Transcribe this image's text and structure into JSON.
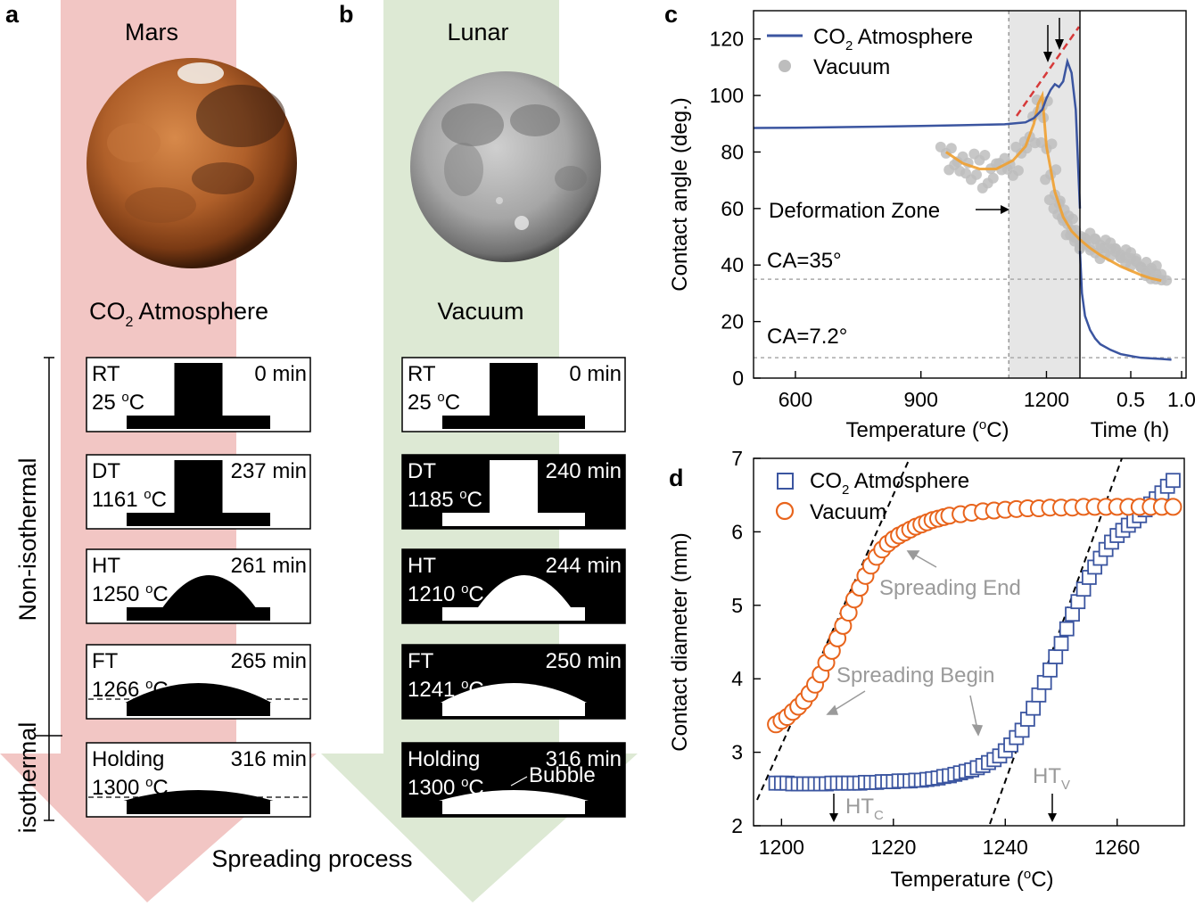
{
  "panels": {
    "a": {
      "letter": "a",
      "planet": "Mars",
      "atmosphere_main": "CO",
      "atmosphere_sub": "2",
      "atmosphere_rest": " Atmosphere",
      "arrow_color": "#f2c6c4",
      "frames": [
        {
          "state": "RT",
          "temp": "25",
          "temp_unit": "oC",
          "time": "0 min"
        },
        {
          "state": "DT",
          "temp": "1161",
          "temp_unit": "oC",
          "time": "237 min"
        },
        {
          "state": "HT",
          "temp": "1250",
          "temp_unit": "oC",
          "time": "261 min"
        },
        {
          "state": "FT",
          "temp": "1266",
          "temp_unit": "oC",
          "time": "265 min"
        },
        {
          "state": "Holding",
          "temp": "1300",
          "temp_unit": "oC",
          "time": "316 min"
        }
      ]
    },
    "b": {
      "letter": "b",
      "planet": "Lunar",
      "atmosphere": "Vacuum",
      "arrow_color": "#dde9d4",
      "bubble": "Bubble",
      "frames": [
        {
          "state": "RT",
          "temp": "25",
          "temp_unit": "oC",
          "time": "0 min"
        },
        {
          "state": "DT",
          "temp": "1185",
          "temp_unit": "oC",
          "time": "240 min"
        },
        {
          "state": "HT",
          "temp": "1210",
          "temp_unit": "oC",
          "time": "244 min"
        },
        {
          "state": "FT",
          "temp": "1241",
          "temp_unit": "oC",
          "time": "250 min"
        },
        {
          "state": "Holding",
          "temp": "1300",
          "temp_unit": "oC",
          "time": "316 min"
        }
      ]
    },
    "side_labels": {
      "non_isothermal": "Non-isothermal",
      "isothermal": "isothermal"
    },
    "bottom_label": "Spreading process"
  },
  "chart_data": [
    {
      "panel": "c",
      "type": "line",
      "ylabel": "Contact angle (deg.)",
      "ylim": [
        0,
        130
      ],
      "yticks": [
        0,
        20,
        40,
        60,
        80,
        100,
        120
      ],
      "x_temperature": {
        "label": "Temperature (",
        "label_sup": "o",
        "label_end": "C)",
        "range": [
          500,
          1280
        ],
        "ticks": [
          600,
          900,
          1200
        ]
      },
      "x_time": {
        "label": "Time (h)",
        "range": [
          0,
          1.0
        ],
        "ticks": [
          "0.5",
          "1.0"
        ],
        "tick_values": [
          0.5,
          1.0
        ]
      },
      "legend": [
        {
          "name_main": "CO",
          "name_sub": "2",
          "name_rest": " Atmosphere",
          "color": "#3b55a0"
        },
        {
          "name": "Vacuum",
          "color": "#bdbdbd"
        }
      ],
      "annotations": {
        "zone": "Deformation Zone",
        "ca1": "CA=35°",
        "ca2": "CA=7.2°"
      },
      "zone_range": [
        1110,
        1280
      ],
      "reference_lines": [
        35,
        7.2
      ],
      "series": [
        {
          "name": "CO2 Atmosphere",
          "segment": "temperature",
          "color": "#3b55a0",
          "x": [
            500,
            600,
            700,
            800,
            900,
            1000,
            1100,
            1150,
            1170,
            1190,
            1200,
            1210,
            1220,
            1230,
            1240,
            1250,
            1260,
            1270,
            1280
          ],
          "y": [
            88.5,
            88.6,
            88.8,
            89,
            89.2,
            89.5,
            89.8,
            90.5,
            92,
            95,
            99,
            102,
            104,
            103,
            105,
            112,
            108,
            95,
            60
          ]
        },
        {
          "name": "CO2 Atmosphere",
          "segment": "time",
          "color": "#3b55a0",
          "x": [
            0,
            0.02,
            0.05,
            0.1,
            0.15,
            0.2,
            0.3,
            0.4,
            0.5,
            0.6,
            0.7,
            0.8,
            0.9
          ],
          "y": [
            45,
            30,
            22,
            17,
            14,
            12,
            10,
            8.5,
            7.8,
            7.2,
            7,
            6.8,
            6.5
          ]
        },
        {
          "name": "Vacuum",
          "segment": "temperature",
          "color": "#bdbdbd",
          "x": [
            960,
            980,
            1000,
            1020,
            1040,
            1060,
            1080,
            1100,
            1120,
            1140,
            1160,
            1180,
            1190,
            1200,
            1210,
            1220,
            1230,
            1240,
            1250,
            1260,
            1270,
            1280
          ],
          "y": [
            80,
            75,
            77,
            72,
            78,
            69,
            75,
            76,
            73,
            80,
            85,
            93,
            98,
            82,
            72,
            64,
            60,
            57,
            55,
            52,
            51,
            48
          ]
        },
        {
          "name": "Vacuum",
          "segment": "time",
          "color": "#bdbdbd",
          "x": [
            0,
            0.05,
            0.1,
            0.15,
            0.2,
            0.25,
            0.3,
            0.35,
            0.4,
            0.45,
            0.5,
            0.55,
            0.6,
            0.65,
            0.7,
            0.75,
            0.8
          ],
          "y": [
            48,
            47,
            50,
            46,
            48,
            44,
            47,
            43,
            45,
            41,
            44,
            40,
            41,
            38,
            38,
            36,
            35
          ]
        },
        {
          "name": "Fit",
          "segment": "temperature",
          "color": "#f0a030",
          "x": [
            960,
            1000,
            1040,
            1080,
            1120,
            1150,
            1170,
            1180,
            1190,
            1200,
            1220,
            1240,
            1260,
            1280
          ],
          "y": [
            80,
            76,
            74,
            74,
            77,
            82,
            90,
            97,
            100,
            82,
            66,
            57,
            52,
            49
          ]
        },
        {
          "name": "Fit",
          "segment": "time",
          "color": "#f0a030",
          "x": [
            0,
            0.1,
            0.2,
            0.3,
            0.4,
            0.5,
            0.6,
            0.7,
            0.8
          ],
          "y": [
            49,
            46,
            43.5,
            41.5,
            39.5,
            38,
            36.5,
            35.3,
            34.5
          ]
        }
      ]
    },
    {
      "panel": "d",
      "type": "scatter",
      "xlabel": "Temperature (",
      "xlabel_sup": "o",
      "xlabel_end": "C)",
      "ylabel": "Contact diameter (mm)",
      "xlim": [
        1195,
        1272
      ],
      "ylim": [
        2,
        7
      ],
      "xticks": [
        1200,
        1220,
        1240,
        1260
      ],
      "yticks": [
        2,
        3,
        4,
        5,
        6,
        7
      ],
      "legend": [
        {
          "name_main": "CO",
          "name_sub": "2",
          "name_rest": " Atmosphere",
          "color": "#3b55a0",
          "marker": "square"
        },
        {
          "name": "Vacuum",
          "color": "#e8641c",
          "marker": "circle"
        }
      ],
      "annotations": {
        "spreading_end": "Spreading End",
        "spreading_begin": "Spreading Begin",
        "htc_main": "HT",
        "htc_sub": "C",
        "htv_main": "HT",
        "htv_sub": "V"
      },
      "series": [
        {
          "name": "CO2 Atmosphere",
          "marker": "square",
          "color": "#3b55a0",
          "x": [
            1199,
            1200,
            1201,
            1202,
            1203,
            1204,
            1205,
            1206,
            1207,
            1208,
            1209,
            1210,
            1211,
            1212,
            1213,
            1214,
            1215,
            1216,
            1217,
            1218,
            1219,
            1220,
            1221,
            1222,
            1223,
            1224,
            1225,
            1226,
            1227,
            1228,
            1229,
            1230,
            1231,
            1232,
            1233,
            1234,
            1235,
            1236,
            1237,
            1238,
            1239,
            1240,
            1241,
            1242,
            1243,
            1244,
            1245,
            1246,
            1247,
            1248,
            1249,
            1250,
            1251,
            1252,
            1253,
            1254,
            1255,
            1256,
            1257,
            1258,
            1259,
            1260,
            1261,
            1262,
            1263,
            1264,
            1265,
            1266,
            1267,
            1268,
            1269,
            1270
          ],
          "y": [
            2.58,
            2.58,
            2.58,
            2.57,
            2.57,
            2.57,
            2.57,
            2.57,
            2.57,
            2.57,
            2.58,
            2.58,
            2.58,
            2.58,
            2.58,
            2.58,
            2.59,
            2.59,
            2.59,
            2.6,
            2.6,
            2.6,
            2.61,
            2.61,
            2.61,
            2.62,
            2.62,
            2.63,
            2.64,
            2.65,
            2.67,
            2.68,
            2.7,
            2.72,
            2.74,
            2.76,
            2.79,
            2.82,
            2.86,
            2.9,
            2.95,
            3.02,
            3.1,
            3.2,
            3.3,
            3.45,
            3.6,
            3.78,
            3.95,
            4.12,
            4.3,
            4.48,
            4.68,
            4.88,
            5.05,
            5.22,
            5.38,
            5.52,
            5.64,
            5.76,
            5.86,
            5.95,
            6.02,
            6.09,
            6.15,
            6.22,
            6.3,
            6.38,
            6.45,
            6.53,
            6.62,
            6.7
          ]
        },
        {
          "name": "Vacuum",
          "marker": "circle",
          "color": "#e8641c",
          "x": [
            1199,
            1200,
            1201,
            1202,
            1203,
            1204,
            1205,
            1206,
            1207,
            1208,
            1209,
            1210,
            1211,
            1212,
            1213,
            1214,
            1215,
            1216,
            1217,
            1218,
            1219,
            1220,
            1221,
            1222,
            1223,
            1224,
            1225,
            1226,
            1227,
            1228,
            1229,
            1230,
            1232,
            1234,
            1236,
            1238,
            1240,
            1242,
            1244,
            1246,
            1248,
            1250,
            1252,
            1254,
            1256,
            1258,
            1260,
            1262,
            1264,
            1266,
            1268,
            1270
          ],
          "y": [
            3.38,
            3.43,
            3.48,
            3.55,
            3.62,
            3.7,
            3.8,
            3.92,
            4.06,
            4.22,
            4.38,
            4.55,
            4.72,
            4.9,
            5.08,
            5.24,
            5.4,
            5.54,
            5.66,
            5.76,
            5.84,
            5.9,
            5.95,
            5.99,
            6.03,
            6.07,
            6.1,
            6.13,
            6.16,
            6.18,
            6.2,
            6.22,
            6.24,
            6.26,
            6.28,
            6.29,
            6.3,
            6.31,
            6.32,
            6.32,
            6.33,
            6.33,
            6.33,
            6.34,
            6.34,
            6.34,
            6.34,
            6.34,
            6.34,
            6.34,
            6.34,
            6.34
          ]
        }
      ]
    }
  ]
}
